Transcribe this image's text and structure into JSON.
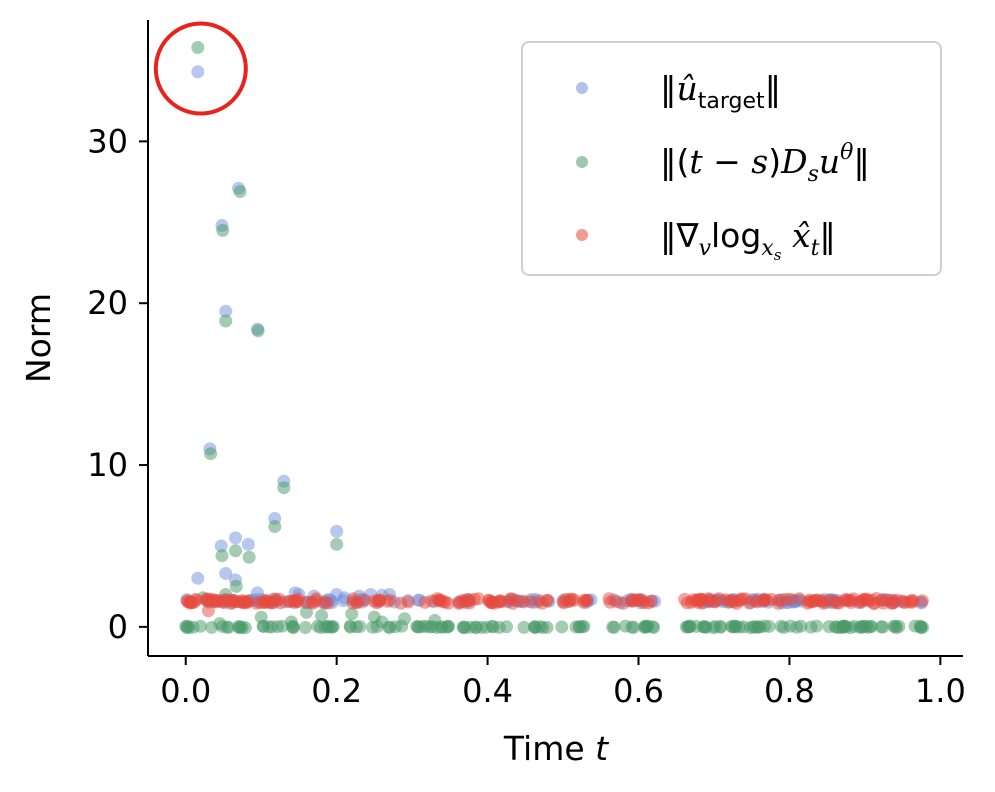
{
  "chart_data": {
    "type": "scatter",
    "xlabel": "Time t",
    "ylabel": "Norm",
    "xlim": [
      -0.05,
      1.03
    ],
    "ylim": [
      -1.8,
      37.5
    ],
    "xticks": [
      0.0,
      0.2,
      0.4,
      0.6,
      0.8,
      1.0
    ],
    "xtick_labels": [
      "0.0",
      "0.2",
      "0.4",
      "0.6",
      "0.8",
      "1.0"
    ],
    "yticks": [
      0,
      10,
      20,
      30
    ],
    "ytick_labels": [
      "0",
      "10",
      "20",
      "30"
    ],
    "grid": false,
    "legend_position": "top-right",
    "highlight_circle": {
      "x": 0.02,
      "y": 34.5,
      "color": "#e8231b"
    },
    "series": [
      {
        "name": "‖û_target‖",
        "color": "#6f8fdc",
        "points": [
          [
            0.016,
            34.3
          ],
          [
            0.07,
            27.1
          ],
          [
            0.048,
            24.8
          ],
          [
            0.053,
            19.5
          ],
          [
            0.095,
            18.4
          ],
          [
            0.032,
            11.0
          ],
          [
            0.13,
            9.0
          ],
          [
            0.118,
            6.7
          ],
          [
            0.2,
            5.9
          ],
          [
            0.066,
            5.5
          ],
          [
            0.047,
            5.0
          ],
          [
            0.083,
            5.1
          ],
          [
            0.053,
            3.3
          ],
          [
            0.066,
            2.9
          ],
          [
            0.016,
            3.0
          ],
          [
            0.095,
            2.1
          ],
          [
            0.145,
            2.1
          ],
          [
            0.15,
            2.0
          ],
          [
            0.17,
            1.9
          ],
          [
            0.2,
            2.0
          ],
          [
            0.23,
            1.9
          ],
          [
            0.245,
            2.0
          ],
          [
            0.26,
            1.95
          ],
          [
            0.27,
            2.0
          ],
          [
            0.19,
            1.7
          ],
          [
            0.21,
            1.8
          ],
          [
            0.03,
            1.6
          ],
          [
            0.055,
            1.7
          ],
          [
            0.1,
            1.7
          ],
          [
            0.12,
            1.65
          ]
        ]
      },
      {
        "name": "‖(t − s)D_s u^θ‖",
        "color": "#4a9a68",
        "points": [
          [
            0.016,
            35.8
          ],
          [
            0.072,
            26.9
          ],
          [
            0.049,
            24.5
          ],
          [
            0.053,
            18.9
          ],
          [
            0.096,
            18.3
          ],
          [
            0.033,
            10.7
          ],
          [
            0.13,
            8.6
          ],
          [
            0.118,
            6.2
          ],
          [
            0.2,
            5.1
          ],
          [
            0.066,
            4.7
          ],
          [
            0.048,
            4.4
          ],
          [
            0.084,
            4.3
          ],
          [
            0.053,
            2.0
          ],
          [
            0.067,
            2.5
          ],
          [
            0.023,
            1.8
          ],
          [
            0.1,
            0.6
          ],
          [
            0.16,
            0.9
          ],
          [
            0.18,
            0.7
          ],
          [
            0.22,
            0.8
          ],
          [
            0.25,
            0.6
          ],
          [
            0.26,
            0.3
          ],
          [
            0.29,
            0.5
          ],
          [
            0.33,
            0.4
          ],
          [
            0.045,
            0.2
          ],
          [
            0.14,
            0.3
          ]
        ]
      },
      {
        "name": "‖∇_v log_{x_s} x̂_t‖",
        "color": "#e8493d",
        "points": [
          [
            0.03,
            1.0
          ],
          [
            0.01,
            1.5
          ],
          [
            0.04,
            1.55
          ],
          [
            0.06,
            1.45
          ],
          [
            0.08,
            1.55
          ],
          [
            0.1,
            1.5
          ],
          [
            0.72,
            1.55
          ],
          [
            0.73,
            1.45
          ],
          [
            0.95,
            1.6
          ],
          [
            0.5,
            1.55
          ]
        ]
      }
    ],
    "bands": [
      {
        "series": 1,
        "y": 0.0,
        "ranges": [
          [
            0.0,
            0.54
          ],
          [
            0.56,
            0.63
          ],
          [
            0.66,
            0.98
          ]
        ],
        "count": 160
      },
      {
        "series": 2,
        "y": 1.6,
        "ranges": [
          [
            0.0,
            0.54
          ],
          [
            0.56,
            0.63
          ],
          [
            0.66,
            0.98
          ]
        ],
        "count": 210
      }
    ]
  }
}
